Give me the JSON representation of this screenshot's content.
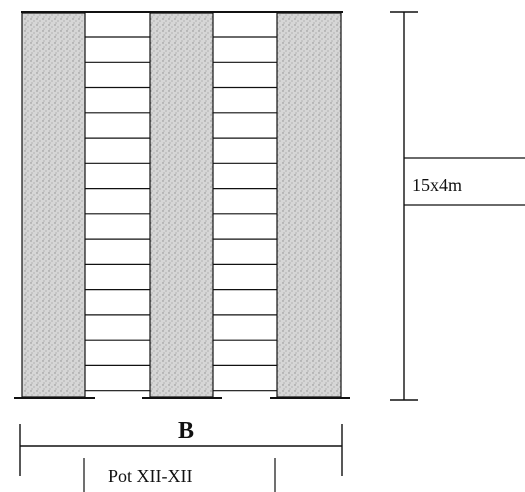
{
  "diagram": {
    "height_label": "15x4m",
    "width_label": "B",
    "section_label": "Pot XII-XII",
    "floor_count": 15,
    "colors": {
      "line": "#111111",
      "wall_fill": "#d2d2d2",
      "background": "#ffffff"
    }
  }
}
